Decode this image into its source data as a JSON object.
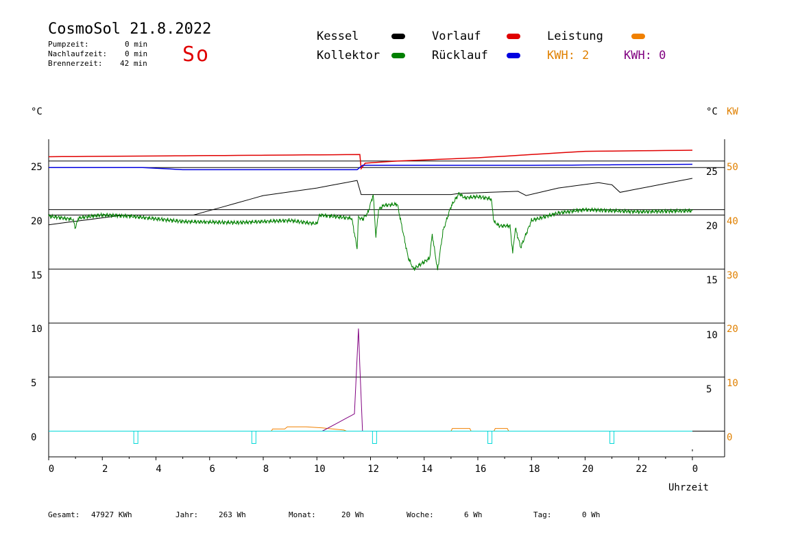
{
  "header": {
    "title": "CosmoSol 21.8.2022",
    "day": "So",
    "stats": [
      {
        "label": "Pumpzeit:",
        "value": "0 min"
      },
      {
        "label": "Nachlaufzeit:",
        "value": "0 min"
      },
      {
        "label": "Brennerzeit:",
        "value": "42 min"
      }
    ]
  },
  "legend": {
    "kessel": {
      "label": "Kessel",
      "color": "#000000"
    },
    "kollektor": {
      "label": "Kollektor",
      "color": "#008000"
    },
    "vorlauf": {
      "label": "Vorlauf",
      "color": "#e00000"
    },
    "ruecklauf": {
      "label": "Rücklauf",
      "color": "#0000e0"
    },
    "leistung": {
      "label": "Leistung",
      "color": "#f08000"
    },
    "kwh_orange": "KWH: 2",
    "kwh_purple": "KWH: 0",
    "orange": "#e08000",
    "purple": "#800080"
  },
  "footer": [
    {
      "label": "Gesamt:",
      "value": "47927 KWh"
    },
    {
      "label": "Jahr:",
      "value": "263 Wh"
    },
    {
      "label": "Monat:",
      "value": "20 Wh"
    },
    {
      "label": "Woche:",
      "value": "6 Wh"
    },
    {
      "label": "Tag:",
      "value": "0 Wh"
    }
  ],
  "chart_data": {
    "type": "line",
    "xlabel": "Uhrzeit",
    "y_left_unit": "°C",
    "y_right_unit": "°C",
    "y_right2_unit": "KW",
    "x_ticks": [
      "0",
      "2",
      "4",
      "6",
      "8",
      "10",
      "12",
      "14",
      "16",
      "18",
      "20",
      "22",
      "0"
    ],
    "y_left_ticks": [
      "25",
      "20",
      "15",
      "10",
      "5",
      "0"
    ],
    "y_right_ticks": [
      "25",
      "20",
      "15",
      "10",
      "5"
    ],
    "y_right2_ticks": [
      "50",
      "40",
      "30",
      "20",
      "10",
      "0"
    ],
    "xlim": [
      0,
      24
    ],
    "ylim": [
      -2,
      27
    ],
    "series": [
      {
        "name": "Vorlauf",
        "color": "#e00000",
        "x": [
          0,
          11.6,
          11.65,
          11.8,
          13,
          16,
          20,
          24
        ],
        "y": [
          25.4,
          25.6,
          24.3,
          24.8,
          25.0,
          25.3,
          25.9,
          26.0
        ]
      },
      {
        "name": "Rücklauf",
        "color": "#0000e0",
        "x": [
          0,
          3.5,
          5,
          10,
          11.5,
          11.7,
          14,
          18,
          24
        ],
        "y": [
          24.4,
          24.4,
          24.2,
          24.2,
          24.2,
          24.6,
          24.6,
          24.6,
          24.7
        ]
      },
      {
        "name": "Kessel",
        "color": "#000000",
        "x": [
          0,
          2.8,
          5.4,
          8,
          10,
          11.5,
          11.65,
          15,
          15.3,
          17.5,
          17.8,
          19,
          20.5,
          21,
          21.3,
          24
        ],
        "y": [
          19.1,
          20.0,
          20.0,
          21.8,
          22.5,
          23.2,
          21.9,
          21.9,
          22.0,
          22.2,
          21.8,
          22.5,
          23.0,
          22.8,
          22.1,
          23.4
        ]
      },
      {
        "name": "Kollektor",
        "color": "#008000",
        "x": [
          0,
          0.9,
          1.0,
          1.1,
          1.3,
          2,
          3,
          5,
          7,
          9,
          9.6,
          10,
          10.1,
          11.3,
          11.5,
          11.55,
          11.7,
          11.9,
          12.1,
          12.2,
          12.3,
          12.5,
          13,
          13.4,
          13.6,
          13.9,
          14.2,
          14.3,
          14.5,
          14.7,
          15.0,
          15.3,
          15.5,
          16,
          16.5,
          16.6,
          16.8,
          17.2,
          17.3,
          17.4,
          17.6,
          18,
          19,
          20,
          21,
          22,
          24
        ],
        "y": [
          19.9,
          19.6,
          18.8,
          19.7,
          19.8,
          20.0,
          19.9,
          19.4,
          19.3,
          19.5,
          19.3,
          19.2,
          20.0,
          19.7,
          16.9,
          19.8,
          19.6,
          20.2,
          21.9,
          18.0,
          20.5,
          20.9,
          21.0,
          16.1,
          15.0,
          15.5,
          16.0,
          18.2,
          14.9,
          18.5,
          20.8,
          22.0,
          21.6,
          21.7,
          21.5,
          19.4,
          19.0,
          19.0,
          16.5,
          18.8,
          17.0,
          19.5,
          20.2,
          20.5,
          20.4,
          20.3,
          20.4
        ]
      },
      {
        "name": "Leistung",
        "color": "#f08000",
        "x": [
          0,
          8.3,
          8.35,
          8.8,
          8.9,
          9.6,
          10.2,
          11.0,
          11.1,
          11.4,
          15.0,
          15.05,
          15.7,
          15.75,
          16.6,
          16.65,
          17.1,
          17.15,
          24
        ],
        "y": [
          0,
          0,
          0.2,
          0.2,
          0.4,
          0.4,
          0.3,
          0.1,
          0,
          0,
          0,
          0.25,
          0.25,
          0,
          0,
          0.25,
          0.25,
          0,
          0
        ]
      },
      {
        "name": "KWH",
        "color": "#800080",
        "x": [
          10.2,
          11.4,
          11.55,
          11.6,
          11.7
        ],
        "y": [
          0,
          1.6,
          9.5,
          6.0,
          0
        ]
      },
      {
        "name": "Pumpe",
        "color": "#00d8d8",
        "x": [
          3.25,
          7.65,
          12.15,
          16.45,
          21.0
        ],
        "y": [
          0,
          0,
          0,
          0,
          0
        ]
      }
    ],
    "grid": true
  }
}
